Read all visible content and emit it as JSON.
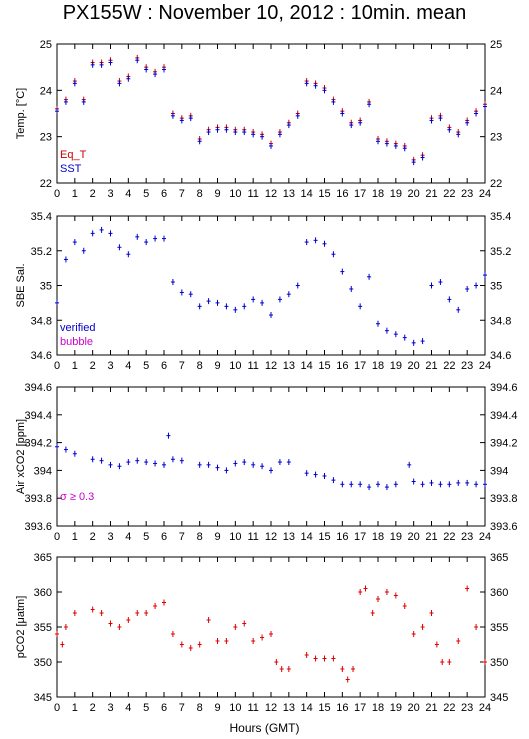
{
  "title": "PX155W : November 10, 2012 : 10min. mean",
  "xlabel": "Hours (GMT)",
  "colors": {
    "eq_t": "#cc0000",
    "sst": "#0000cc",
    "verified": "#0000cc",
    "bubble": "#cc00cc",
    "sigma": "#cc00cc",
    "pco2": "#e00000"
  },
  "chart_data": [
    {
      "type": "scatter",
      "ylabel": "Temp. [°C]",
      "ylim": [
        22,
        25
      ],
      "yticks": [
        "22",
        "23",
        "24",
        "25"
      ],
      "xlim": [
        0,
        24
      ],
      "xticks": [
        "0",
        "1",
        "2",
        "3",
        "4",
        "5",
        "6",
        "7",
        "8",
        "9",
        "10",
        "11",
        "12",
        "13",
        "14",
        "15",
        "16",
        "17",
        "18",
        "19",
        "20",
        "21",
        "22",
        "23",
        "24"
      ],
      "legend": [
        "Eq_T",
        "SST"
      ],
      "series": [
        {
          "name": "Eq_T",
          "x": [
            0,
            0.5,
            1,
            1.5,
            2,
            2.5,
            3,
            3.5,
            4,
            4.5,
            5,
            5.5,
            6,
            6.5,
            7,
            7.5,
            8,
            8.5,
            9,
            9.5,
            10,
            10.5,
            11,
            11.5,
            12,
            12.5,
            13,
            13.5,
            14,
            14.5,
            15,
            15.5,
            16,
            16.5,
            17,
            17.5,
            18,
            18.5,
            19,
            19.5,
            20,
            20.5,
            21,
            21.5,
            22,
            22.5,
            23,
            23.5,
            24
          ],
          "y": [
            23.6,
            23.8,
            24.2,
            23.8,
            24.6,
            24.6,
            24.65,
            24.2,
            24.3,
            24.7,
            24.5,
            24.4,
            24.5,
            23.5,
            23.4,
            23.45,
            22.95,
            23.15,
            23.2,
            23.2,
            23.15,
            23.15,
            23.1,
            23.05,
            22.85,
            23.1,
            23.3,
            23.5,
            24.2,
            24.15,
            24.05,
            23.8,
            23.55,
            23.3,
            23.35,
            23.75,
            22.95,
            22.9,
            22.85,
            22.8,
            22.5,
            22.6,
            23.4,
            23.45,
            23.2,
            23.1,
            23.35,
            23.55,
            23.7
          ]
        },
        {
          "name": "SST",
          "x": [
            0,
            0.5,
            1,
            1.5,
            2,
            2.5,
            3,
            3.5,
            4,
            4.5,
            5,
            5.5,
            6,
            6.5,
            7,
            7.5,
            8,
            8.5,
            9,
            9.5,
            10,
            10.5,
            11,
            11.5,
            12,
            12.5,
            13,
            13.5,
            14,
            14.5,
            15,
            15.5,
            16,
            16.5,
            17,
            17.5,
            18,
            18.5,
            19,
            19.5,
            20,
            20.5,
            21,
            21.5,
            22,
            22.5,
            23,
            23.5,
            24
          ],
          "y": [
            23.55,
            23.75,
            24.15,
            23.75,
            24.55,
            24.55,
            24.6,
            24.15,
            24.25,
            24.65,
            24.45,
            24.35,
            24.45,
            23.45,
            23.35,
            23.4,
            22.9,
            23.1,
            23.15,
            23.15,
            23.1,
            23.1,
            23.05,
            23.0,
            22.8,
            23.05,
            23.25,
            23.45,
            24.15,
            24.1,
            24.0,
            23.75,
            23.5,
            23.25,
            23.3,
            23.7,
            22.9,
            22.85,
            22.8,
            22.75,
            22.45,
            22.55,
            23.35,
            23.4,
            23.15,
            23.05,
            23.3,
            23.5,
            23.65
          ]
        }
      ]
    },
    {
      "type": "scatter",
      "ylabel": "SBE Sal.",
      "ylim": [
        34.6,
        35.4
      ],
      "yticks": [
        "34.6",
        "34.8",
        "35",
        "35.2",
        "35.4"
      ],
      "xlim": [
        0,
        24
      ],
      "xticks": [
        "0",
        "1",
        "2",
        "3",
        "4",
        "5",
        "6",
        "7",
        "8",
        "9",
        "10",
        "11",
        "12",
        "13",
        "14",
        "15",
        "16",
        "17",
        "18",
        "19",
        "20",
        "21",
        "22",
        "23",
        "24"
      ],
      "legend": [
        "verified",
        "bubble"
      ],
      "series": [
        {
          "name": "verified",
          "x": [
            0,
            0.5,
            1,
            1.5,
            2,
            2.5,
            3,
            3.5,
            4,
            4.5,
            5,
            5.5,
            6,
            6.5,
            7,
            7.5,
            8,
            8.5,
            9,
            9.5,
            10,
            10.5,
            11,
            11.5,
            12,
            12.5,
            13,
            13.5,
            14,
            14.5,
            15,
            15.5,
            16,
            16.5,
            17,
            17.5,
            18,
            18.5,
            19,
            19.5,
            20,
            20.5,
            21,
            21.5,
            22,
            22.5,
            23,
            23.5,
            24
          ],
          "y": [
            34.9,
            35.15,
            35.25,
            35.2,
            35.3,
            35.32,
            35.3,
            35.22,
            35.18,
            35.28,
            35.25,
            35.27,
            35.27,
            35.02,
            34.96,
            34.95,
            34.88,
            34.91,
            34.9,
            34.88,
            34.86,
            34.88,
            34.92,
            34.9,
            34.83,
            34.92,
            34.95,
            35.0,
            35.25,
            35.26,
            35.24,
            35.18,
            35.08,
            34.98,
            34.88,
            35.05,
            34.78,
            34.74,
            34.72,
            34.7,
            34.67,
            34.68,
            35.0,
            35.02,
            34.92,
            34.86,
            34.98,
            35.0,
            35.06
          ]
        }
      ]
    },
    {
      "type": "scatter",
      "ylabel": "Air xCO2 [ppm]",
      "ylim": [
        393.6,
        394.6
      ],
      "yticks": [
        "393.6",
        "393.8",
        "394",
        "394.2",
        "394.4",
        "394.6"
      ],
      "xlim": [
        0,
        24
      ],
      "xticks": [
        "0",
        "1",
        "2",
        "3",
        "4",
        "5",
        "6",
        "7",
        "8",
        "9",
        "10",
        "11",
        "12",
        "13",
        "14",
        "15",
        "16",
        "17",
        "18",
        "19",
        "20",
        "21",
        "22",
        "23",
        "24"
      ],
      "legend": [
        "σ ≥ 0.3"
      ],
      "series": [
        {
          "name": "Air xCO2",
          "x": [
            0,
            0.5,
            1,
            2,
            2.5,
            3,
            3.5,
            4,
            4.5,
            5,
            5.5,
            6,
            6.25,
            6.5,
            7,
            8,
            8.5,
            9,
            9.5,
            10,
            10.5,
            11,
            11.5,
            12,
            12.5,
            13,
            14,
            14.5,
            15,
            15.5,
            16,
            16.5,
            17,
            17.5,
            18,
            18.5,
            19,
            19.75,
            20,
            20.5,
            21,
            21.5,
            22,
            22.5,
            23,
            23.5,
            24
          ],
          "y": [
            394.17,
            394.15,
            394.12,
            394.08,
            394.07,
            394.04,
            394.03,
            394.06,
            394.07,
            394.06,
            394.05,
            394.04,
            394.25,
            394.08,
            394.07,
            394.04,
            394.04,
            394.02,
            394.0,
            394.05,
            394.06,
            394.04,
            394.03,
            394.0,
            394.06,
            394.06,
            393.98,
            393.97,
            393.96,
            393.93,
            393.9,
            393.9,
            393.9,
            393.88,
            393.9,
            393.88,
            393.9,
            394.04,
            393.92,
            393.9,
            393.91,
            393.9,
            393.9,
            393.91,
            393.91,
            393.9,
            393.9
          ]
        }
      ]
    },
    {
      "type": "scatter",
      "ylabel": "pCO2 [μatm]",
      "ylim": [
        345,
        365
      ],
      "yticks": [
        "345",
        "350",
        "355",
        "360",
        "365"
      ],
      "xlim": [
        0,
        24
      ],
      "xticks": [
        "0",
        "1",
        "2",
        "3",
        "4",
        "5",
        "6",
        "7",
        "8",
        "9",
        "10",
        "11",
        "12",
        "13",
        "14",
        "15",
        "16",
        "17",
        "18",
        "19",
        "20",
        "21",
        "22",
        "23",
        "24"
      ],
      "series": [
        {
          "name": "pCO2",
          "x": [
            0,
            0.3,
            0.5,
            1,
            2,
            2.5,
            3,
            3.5,
            4,
            4.5,
            5,
            5.5,
            6,
            6.5,
            7,
            7.5,
            8,
            8.5,
            9,
            9.5,
            10,
            10.5,
            11,
            11.5,
            12,
            12.3,
            12.6,
            13,
            14,
            14.5,
            15,
            15.5,
            16,
            16.3,
            16.6,
            17,
            17.3,
            17.7,
            18,
            18.5,
            19,
            19.5,
            20,
            20.5,
            21,
            21.3,
            21.6,
            22,
            22.5,
            23,
            23.5,
            24
          ],
          "y": [
            354,
            352.5,
            355,
            357,
            357.5,
            357,
            355.5,
            355,
            356,
            357,
            357,
            358,
            358.5,
            354,
            352.5,
            352,
            352.5,
            356,
            353,
            353,
            355,
            355.5,
            353,
            353.5,
            354,
            350,
            349,
            349,
            351,
            350.5,
            350.5,
            350.5,
            349,
            347.5,
            349,
            360,
            360.5,
            357,
            359,
            360,
            359.5,
            358,
            354,
            355,
            357,
            352.5,
            350,
            350,
            353,
            360.5,
            355,
            350
          ]
        }
      ]
    }
  ]
}
